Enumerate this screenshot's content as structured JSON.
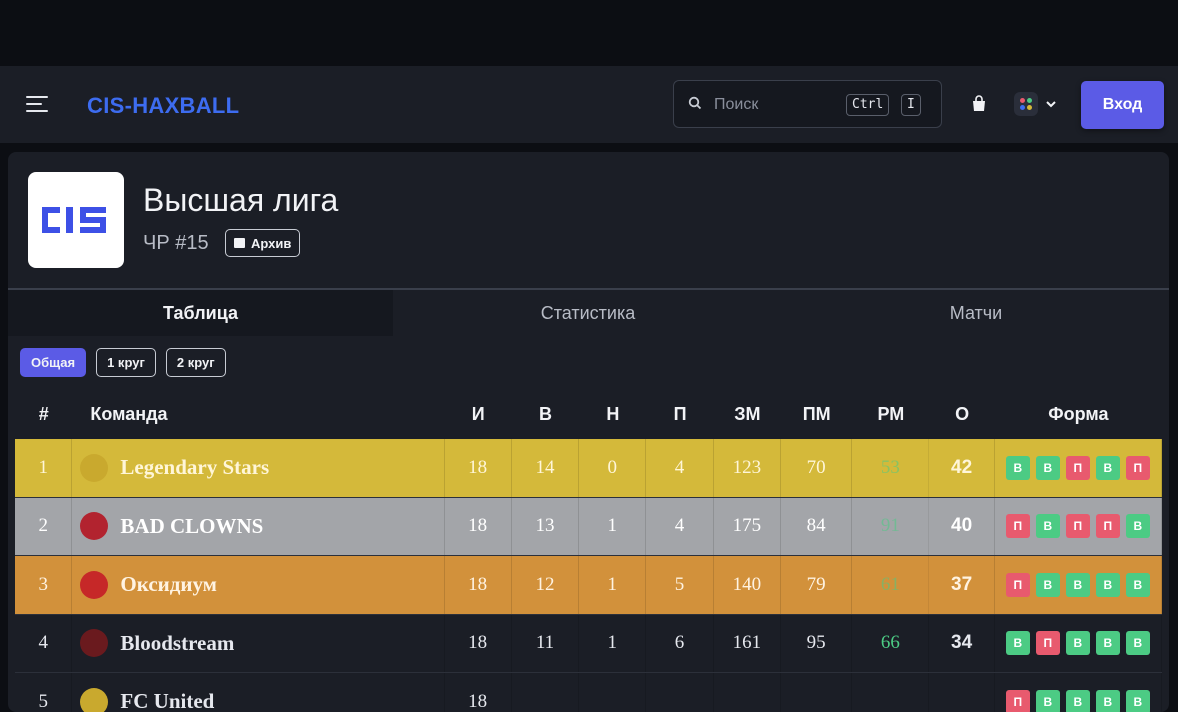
{
  "nav": {
    "brand": "CIS-HAXBALL",
    "search_placeholder": "Поиск",
    "kbd_ctrl": "Ctrl",
    "kbd_key": "I",
    "login_label": "Вход"
  },
  "league": {
    "logo_text": "CIS",
    "title": "Высшая лига",
    "season": "ЧР #15",
    "archive_label": "Архив"
  },
  "tabs": [
    {
      "label": "Таблица",
      "active": true
    },
    {
      "label": "Статистика",
      "active": false
    },
    {
      "label": "Матчи",
      "active": false
    }
  ],
  "filters": [
    {
      "label": "Общая",
      "active": true
    },
    {
      "label": "1 круг",
      "active": false
    },
    {
      "label": "2 круг",
      "active": false
    }
  ],
  "columns": [
    "#",
    "Команда",
    "И",
    "В",
    "Н",
    "П",
    "ЗМ",
    "ПМ",
    "РМ",
    "О",
    "Форма"
  ],
  "rows": [
    {
      "pos": "1",
      "team": "Legendary Stars",
      "i": "18",
      "v": "14",
      "n": "0",
      "p": "4",
      "zm": "123",
      "pm": "70",
      "rm": "53",
      "o": "42",
      "form": [
        "В",
        "В",
        "П",
        "В",
        "П"
      ],
      "row_color": "#d4b93a",
      "text_color": "#fff6d8"
    },
    {
      "pos": "2",
      "team": "BAD CLOWNS",
      "i": "18",
      "v": "13",
      "n": "1",
      "p": "4",
      "zm": "175",
      "pm": "84",
      "rm": "91",
      "o": "40",
      "form": [
        "П",
        "В",
        "П",
        "П",
        "В"
      ],
      "row_color": "#a3a5a9",
      "text_color": "#ffffff"
    },
    {
      "pos": "3",
      "team": "Оксидиум",
      "i": "18",
      "v": "12",
      "n": "1",
      "p": "5",
      "zm": "140",
      "pm": "79",
      "rm": "61",
      "o": "37",
      "form": [
        "П",
        "В",
        "В",
        "В",
        "В"
      ],
      "row_color": "#d2913b",
      "text_color": "#fff3e2"
    },
    {
      "pos": "4",
      "team": "Bloodstream",
      "i": "18",
      "v": "11",
      "n": "1",
      "p": "6",
      "zm": "161",
      "pm": "95",
      "rm": "66",
      "o": "34",
      "form": [
        "В",
        "П",
        "В",
        "В",
        "В"
      ],
      "row_color": "#1b1e26",
      "text_color": "#e6e8ee"
    },
    {
      "pos": "5",
      "team": "FC United",
      "i": "18",
      "v": "",
      "n": "",
      "p": "",
      "zm": "",
      "pm": "",
      "rm": "",
      "o": "",
      "form": [
        "П",
        "В",
        "В",
        "В",
        "В"
      ],
      "row_color": "#1b1e26",
      "text_color": "#e6e8ee"
    }
  ],
  "colors": {
    "accent": "#5b5be6",
    "brand": "#3d6cf0",
    "win": "#4ccb84",
    "loss": "#e85a6e",
    "positive_rm": "#4ccb84"
  }
}
